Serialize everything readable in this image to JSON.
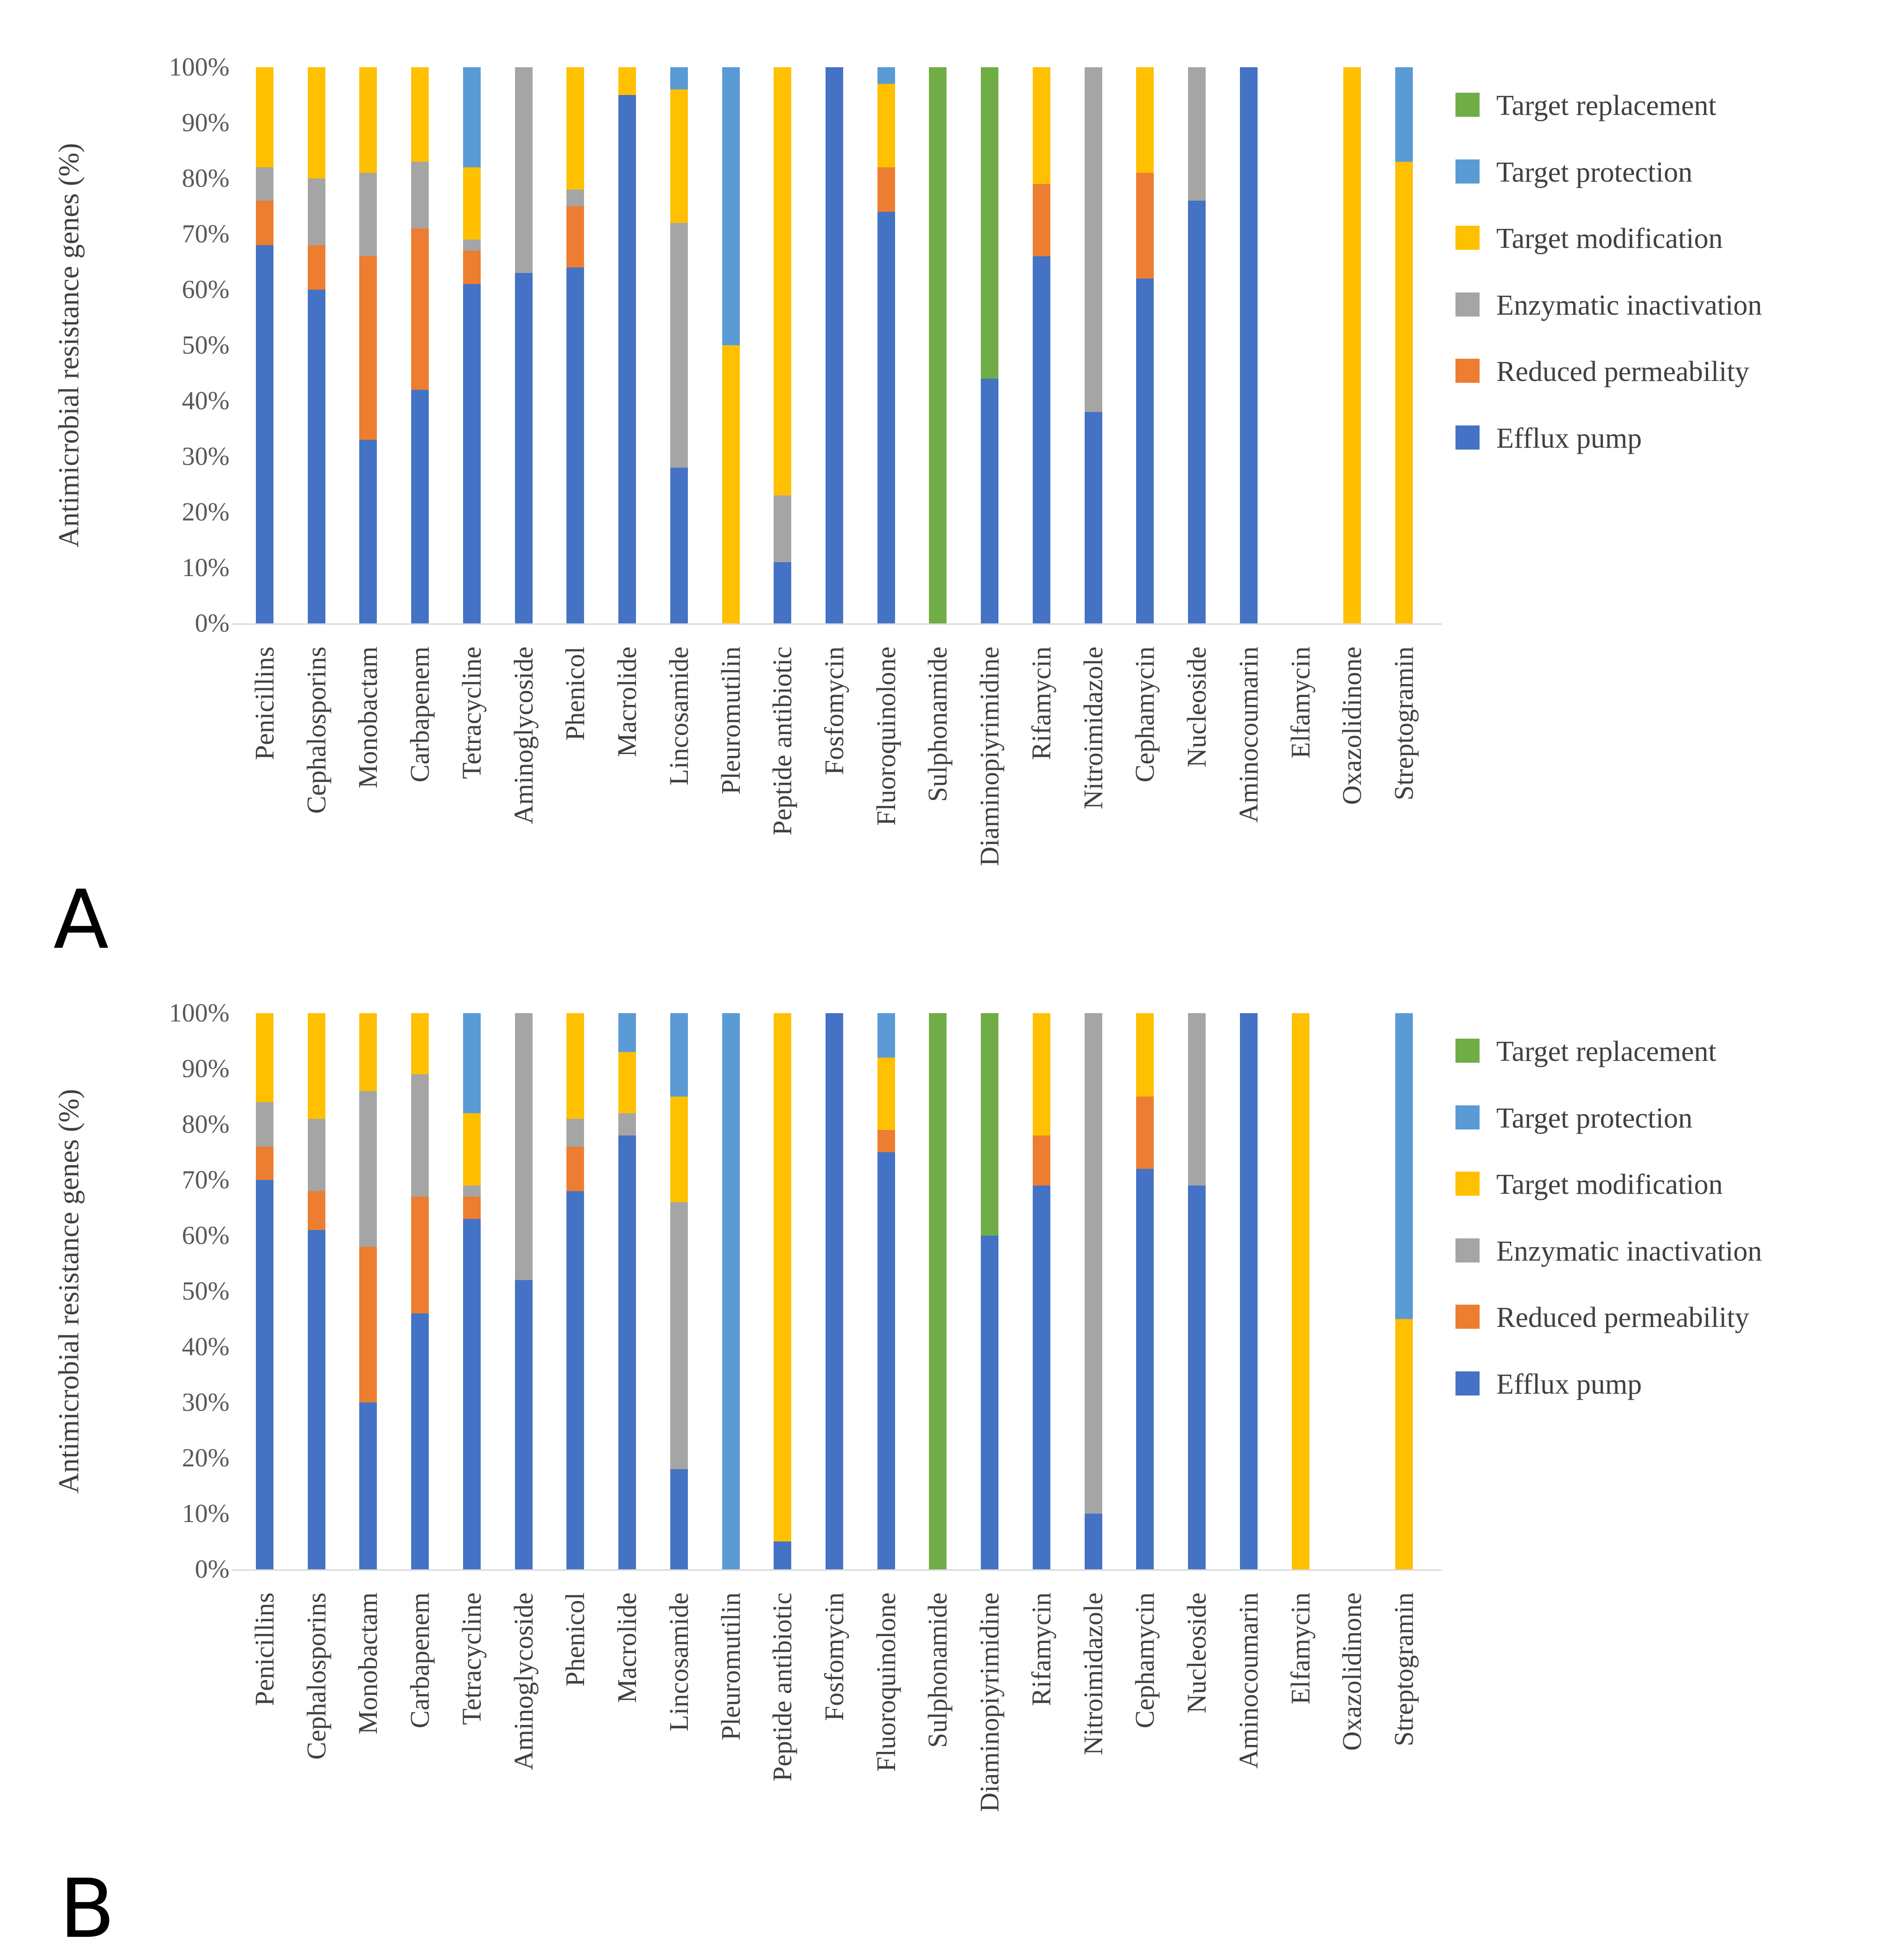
{
  "figure": {
    "panel_a_label": "A",
    "panel_b_label": "B"
  },
  "colors": {
    "efflux_pump": "#4472C4",
    "reduced_permeability": "#ED7D31",
    "enzymatic_inactivation": "#A5A5A5",
    "target_modification": "#FFC000",
    "target_protection": "#5B9BD5",
    "target_replacement": "#70AD47",
    "axis_line": "#D9D9D9",
    "tick_text": "#595959",
    "label_text": "#404040"
  },
  "legend": {
    "items": [
      {
        "label": "Target replacement",
        "color": "#70AD47"
      },
      {
        "label": "Target protection",
        "color": "#5B9BD5"
      },
      {
        "label": "Target modification",
        "color": "#FFC000"
      },
      {
        "label": "Enzymatic inactivation",
        "color": "#A5A5A5"
      },
      {
        "label": "Reduced permeability",
        "color": "#ED7D31"
      },
      {
        "label": "Efflux pump",
        "color": "#4472C4"
      }
    ]
  },
  "chart_data": [
    {
      "id": "A",
      "type": "bar",
      "stacked": true,
      "units": "percent",
      "ylabel": "Antimicrobial resistance genes (%)",
      "ylim": [
        0,
        100
      ],
      "yticks": [
        "0%",
        "10%",
        "20%",
        "30%",
        "40%",
        "50%",
        "60%",
        "70%",
        "80%",
        "90%",
        "100%"
      ],
      "legend_position": "right",
      "grid": false,
      "categories": [
        "Penicillins",
        "Cephalosporins",
        "Monobactam",
        "Carbapenem",
        "Tetracycline",
        "Aminoglycoside",
        "Phenicol",
        "Macrolide",
        "Lincosamide",
        "Pleuromutilin",
        "Peptide antibiotic",
        "Fosfomycin",
        "Fluoroquinolone",
        "Sulphonamide",
        "Diaminopiyrimidine",
        "Rifamycin",
        "Nitroimidazole",
        "Cephamycin",
        "Nucleoside",
        "Aminocoumarin",
        "Elfamycin",
        "Oxazolidinone",
        "Streptogramin"
      ],
      "series": [
        {
          "name": "Efflux pump",
          "color": "#4472C4",
          "values": [
            68,
            60,
            33,
            42,
            61,
            63,
            64,
            95,
            28,
            0,
            11,
            100,
            74,
            0,
            44,
            66,
            38,
            62,
            76,
            100,
            0,
            0,
            0
          ]
        },
        {
          "name": "Reduced permeability",
          "color": "#ED7D31",
          "values": [
            8,
            8,
            33,
            29,
            6,
            0,
            11,
            0,
            0,
            0,
            0,
            0,
            8,
            0,
            0,
            13,
            0,
            19,
            0,
            0,
            0,
            0,
            0
          ]
        },
        {
          "name": "Enzymatic inactivation",
          "color": "#A5A5A5",
          "values": [
            6,
            12,
            15,
            12,
            2,
            37,
            3,
            0,
            44,
            0,
            12,
            0,
            0,
            0,
            0,
            0,
            62,
            0,
            24,
            0,
            0,
            0,
            0
          ]
        },
        {
          "name": "Target modification",
          "color": "#FFC000",
          "values": [
            18,
            20,
            19,
            17,
            13,
            0,
            22,
            5,
            24,
            50,
            77,
            0,
            15,
            0,
            0,
            21,
            0,
            19,
            0,
            0,
            0,
            100,
            83
          ]
        },
        {
          "name": "Target protection",
          "color": "#5B9BD5",
          "values": [
            0,
            0,
            0,
            0,
            18,
            0,
            0,
            0,
            4,
            50,
            0,
            0,
            3,
            0,
            0,
            0,
            0,
            0,
            0,
            0,
            0,
            0,
            17
          ]
        },
        {
          "name": "Target replacement",
          "color": "#70AD47",
          "values": [
            0,
            0,
            0,
            0,
            0,
            0,
            0,
            0,
            0,
            0,
            0,
            0,
            0,
            100,
            56,
            0,
            0,
            0,
            0,
            0,
            0,
            0,
            0
          ]
        }
      ]
    },
    {
      "id": "B",
      "type": "bar",
      "stacked": true,
      "units": "percent",
      "ylabel": "Antimicrobial resistance genes (%)",
      "ylim": [
        0,
        100
      ],
      "yticks": [
        "0%",
        "10%",
        "20%",
        "30%",
        "40%",
        "50%",
        "60%",
        "70%",
        "80%",
        "90%",
        "100%"
      ],
      "legend_position": "right",
      "grid": false,
      "categories": [
        "Penicillins",
        "Cephalosporins",
        "Monobactam",
        "Carbapenem",
        "Tetracycline",
        "Aminoglycoside",
        "Phenicol",
        "Macrolide",
        "Lincosamide",
        "Pleuromutilin",
        "Peptide antibiotic",
        "Fosfomycin",
        "Fluoroquinolone",
        "Sulphonamide",
        "Diaminopiyrimidine",
        "Rifamycin",
        "Nitroimidazole",
        "Cephamycin",
        "Nucleoside",
        "Aminocoumarin",
        "Elfamycin",
        "Oxazolidinone",
        "Streptogramin"
      ],
      "series": [
        {
          "name": "Efflux pump",
          "color": "#4472C4",
          "values": [
            70,
            61,
            30,
            46,
            63,
            52,
            68,
            78,
            18,
            0,
            5,
            100,
            75,
            0,
            60,
            69,
            10,
            72,
            69,
            100,
            0,
            0,
            0
          ]
        },
        {
          "name": "Reduced permeability",
          "color": "#ED7D31",
          "values": [
            6,
            7,
            28,
            21,
            4,
            0,
            8,
            0,
            0,
            0,
            0,
            0,
            4,
            0,
            0,
            9,
            0,
            13,
            0,
            0,
            0,
            0,
            0
          ]
        },
        {
          "name": "Enzymatic inactivation",
          "color": "#A5A5A5",
          "values": [
            8,
            13,
            28,
            22,
            2,
            48,
            5,
            4,
            48,
            0,
            0,
            0,
            0,
            0,
            0,
            0,
            90,
            0,
            31,
            0,
            0,
            0,
            0
          ]
        },
        {
          "name": "Target modification",
          "color": "#FFC000",
          "values": [
            16,
            19,
            14,
            11,
            13,
            0,
            19,
            11,
            19,
            0,
            95,
            0,
            13,
            0,
            0,
            22,
            0,
            15,
            0,
            0,
            100,
            0,
            45
          ]
        },
        {
          "name": "Target protection",
          "color": "#5B9BD5",
          "values": [
            0,
            0,
            0,
            0,
            18,
            0,
            0,
            7,
            15,
            100,
            0,
            0,
            8,
            0,
            0,
            0,
            0,
            0,
            0,
            0,
            0,
            0,
            55
          ]
        },
        {
          "name": "Target replacement",
          "color": "#70AD47",
          "values": [
            0,
            0,
            0,
            0,
            0,
            0,
            0,
            0,
            0,
            0,
            0,
            0,
            0,
            100,
            40,
            0,
            0,
            0,
            0,
            0,
            0,
            0,
            0
          ]
        }
      ]
    }
  ]
}
